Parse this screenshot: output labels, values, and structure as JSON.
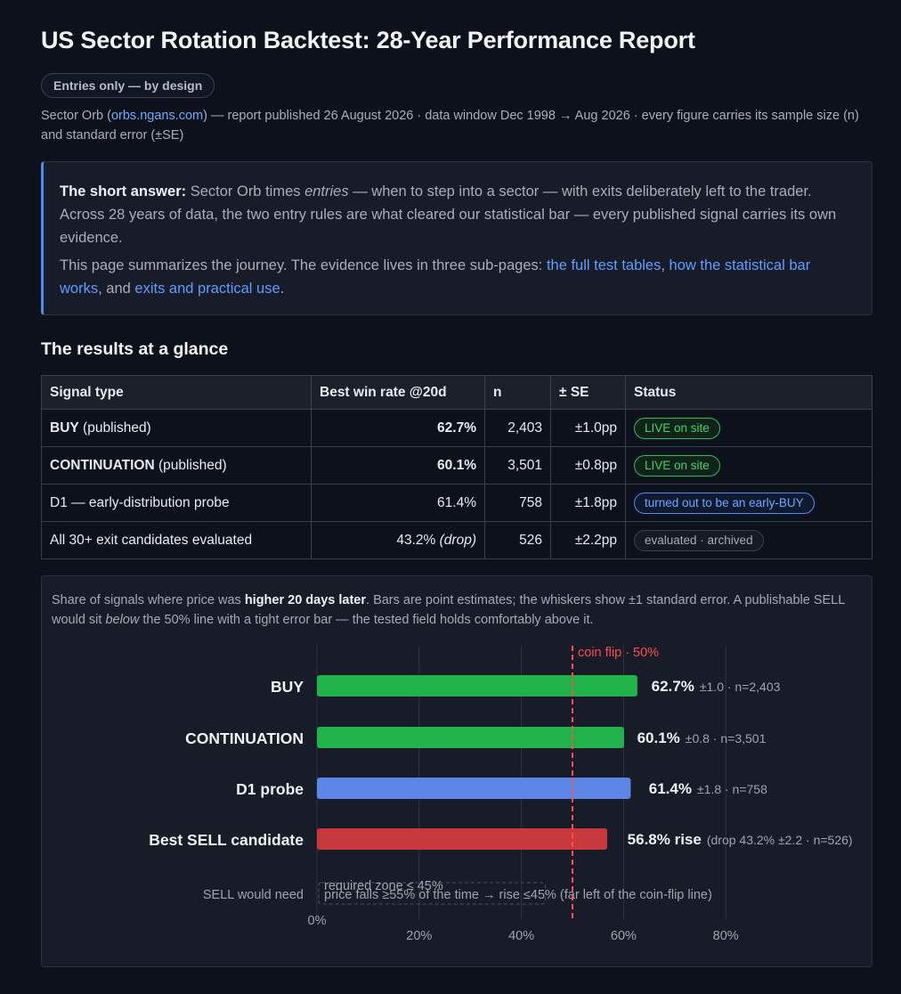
{
  "header": {
    "title": "US Sector Rotation Backtest: 28-Year Performance Report",
    "pill": "Entries only — by design",
    "meta_prefix": "Sector Orb (",
    "meta_link": "orbs.ngans.com",
    "meta_suffix": ") — report published 26 August 2026 · data window Dec 1998 → Aug 2026 · every figure carries its sample size (n) and standard error (±SE)"
  },
  "callout": {
    "lead": "The short answer:",
    "p1_a": " Sector Orb times ",
    "p1_em": "entries",
    "p1_b": " — when to step into a sector — with exits deliberately left to the trader. Across 28 years of data, the two entry rules are what cleared our statistical bar — every published signal carries its own evidence.",
    "p2_a": "This page summarizes the journey. The evidence lives in three sub-pages: ",
    "link1": "the full test tables",
    "sep1": ", ",
    "link2": "how the statistical bar works",
    "sep2": ", and ",
    "link3": "exits and practical use",
    "p2_end": "."
  },
  "results": {
    "heading": "The results at a glance",
    "columns": [
      "Signal type",
      "Best win rate @20d",
      "n",
      "± SE",
      "Status"
    ],
    "rows": [
      {
        "name_bold": "BUY",
        "name_rest": " (published)",
        "rate": "62.7%",
        "rate_bold": true,
        "n": "2,403",
        "se": "±1.0pp",
        "status": "LIVE on site",
        "badge": "green"
      },
      {
        "name_bold": "CONTINUATION",
        "name_rest": " (published)",
        "rate": "60.1%",
        "rate_bold": true,
        "n": "3,501",
        "se": "±0.8pp",
        "status": "LIVE on site",
        "badge": "green"
      },
      {
        "name_bold": "",
        "name_rest": "D1 — early-distribution probe",
        "rate": "61.4%",
        "rate_bold": false,
        "n": "758",
        "se": "±1.8pp",
        "status": "turned out to be an early-BUY",
        "badge": "blue"
      },
      {
        "name_bold": "",
        "name_rest": "All 30+ exit candidates evaluated",
        "rate": "43.2%",
        "rate_em": "(drop)",
        "rate_bold": false,
        "n": "526",
        "se": "±2.2pp",
        "status": "evaluated · archived",
        "badge": "gray"
      }
    ]
  },
  "chart_caption": {
    "a": "Share of signals where price was ",
    "strong": "higher 20 days later",
    "b": ". Bars are point estimates; the whiskers show ±1 standard error. A publishable SELL would sit ",
    "em": "below",
    "c": " the 50% line with a tight error bar — the tested field holds comfortably above it."
  },
  "chart_data": {
    "type": "bar",
    "orientation": "horizontal",
    "categories": [
      "BUY",
      "CONTINUATION",
      "D1 probe",
      "Best SELL candidate"
    ],
    "values": [
      62.7,
      60.1,
      61.4,
      56.8
    ],
    "errors": [
      1.0,
      0.8,
      1.8,
      2.2
    ],
    "colors": [
      "#22b24c",
      "#22b24c",
      "#5b86e5",
      "#c8393d"
    ],
    "value_labels": [
      "62.7%",
      "60.1%",
      "61.4%",
      "56.8% rise"
    ],
    "sub_labels": [
      "±1.0 · n=2,403",
      "±0.8 · n=3,501",
      "±1.8 · n=758",
      "(drop 43.2% ±2.2 · n=526)"
    ],
    "xlim": [
      0,
      80
    ],
    "xticks": [
      0,
      20,
      40,
      60,
      80
    ],
    "xtick_labels": [
      "0%",
      "20%",
      "40%",
      "60%",
      "80%"
    ],
    "grid": true,
    "reference_line": {
      "value": 50,
      "label": "coin flip · 50%",
      "color": "#ff4d4d"
    },
    "zone": {
      "label": "required zone ≤ 45%",
      "range": [
        0,
        45
      ]
    },
    "sell_row_label": "SELL would need",
    "sell_row_text": "price falls ≥55% of the time → rise ≤45% (far left of the coin-flip line)"
  },
  "colors": {
    "accent": "#4f8cf0",
    "green": "#22b24c",
    "red": "#c8393d",
    "blue": "#5b86e5"
  }
}
